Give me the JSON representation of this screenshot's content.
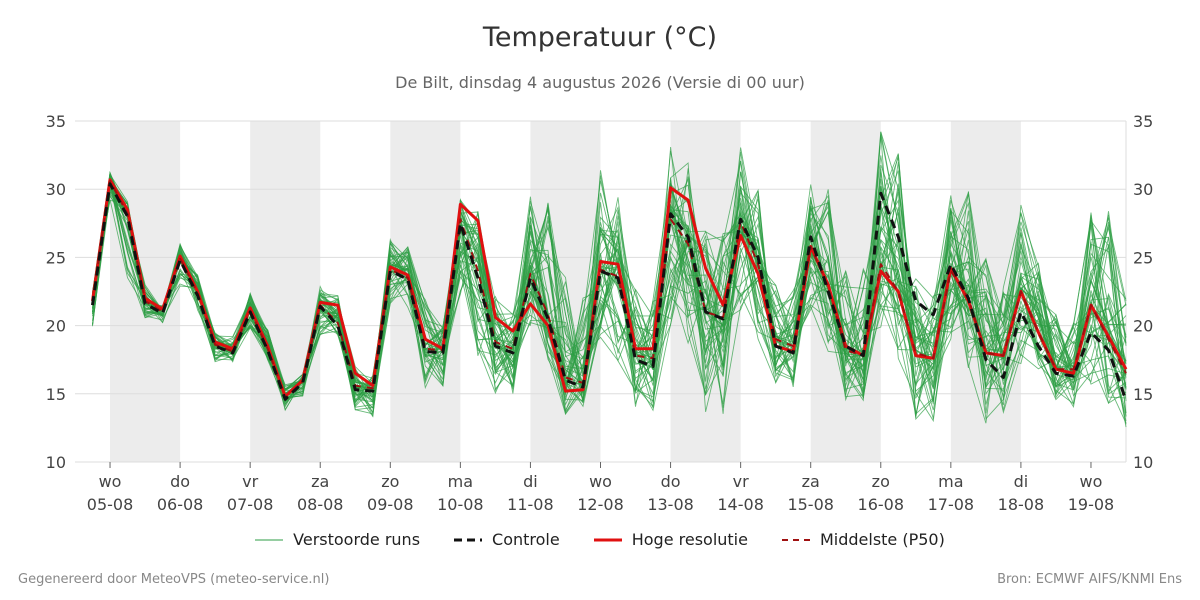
{
  "title": "Temperatuur (°C)",
  "subtitle": "De Bilt, dinsdag  4 augustus 2026 (Versie di 00 uur)",
  "footer_left": "Gegenereerd door MeteoVPS (meteo-service.nl)",
  "footer_right": "Bron: ECMWF AIFS/KNMI Ens",
  "colors": {
    "members": "#2e9e45",
    "control": "#111111",
    "hires": "#e01010",
    "median": "#a01010",
    "weekend_band": "#ececec",
    "grid": "#dddddd"
  },
  "chart_data": {
    "type": "line",
    "ylim": [
      10,
      35
    ],
    "yticks": [
      10,
      15,
      20,
      25,
      30,
      35
    ],
    "grid": true,
    "legend_position": "bottom",
    "x_range_hours": [
      -12,
      348
    ],
    "x_unit": "hours since 05-08 00:00",
    "step_hours": 6,
    "start_hour": -6,
    "xticks": [
      {
        "day": "wo",
        "date": "05-08"
      },
      {
        "day": "do",
        "date": "06-08"
      },
      {
        "day": "vr",
        "date": "07-08"
      },
      {
        "day": "za",
        "date": "08-08"
      },
      {
        "day": "zo",
        "date": "09-08"
      },
      {
        "day": "ma",
        "date": "10-08"
      },
      {
        "day": "di",
        "date": "11-08"
      },
      {
        "day": "wo",
        "date": "12-08"
      },
      {
        "day": "do",
        "date": "13-08"
      },
      {
        "day": "vr",
        "date": "14-08"
      },
      {
        "day": "za",
        "date": "15-08"
      },
      {
        "day": "zo",
        "date": "16-08"
      },
      {
        "day": "ma",
        "date": "17-08"
      },
      {
        "day": "di",
        "date": "18-08"
      },
      {
        "day": "wo",
        "date": "19-08"
      }
    ],
    "shaded_days": [
      "05-08",
      "07-08",
      "09-08",
      "11-08",
      "13-08",
      "15-08",
      "17-08"
    ],
    "legend": [
      "Verstoorde runs",
      "Controle",
      "Hoge resolutie",
      "Middelste (P50)"
    ],
    "series": [
      {
        "name": "Hoge resolutie",
        "style": "solid",
        "values": [
          21.8,
          30.7,
          28.5,
          22.0,
          21.2,
          25.1,
          22.5,
          18.8,
          18.3,
          21.3,
          18.5,
          14.8,
          16.0,
          21.7,
          21.5,
          16.5,
          15.6,
          24.3,
          23.7,
          19.0,
          18.3,
          28.9,
          27.7,
          20.6,
          19.6,
          21.6,
          20.0,
          15.2,
          15.3,
          24.7,
          24.5,
          18.3,
          18.3,
          30.1,
          29.2,
          24.2,
          21.5,
          26.6,
          23.8,
          18.5,
          18.1,
          25.8,
          23.0,
          18.5,
          17.8,
          24.0,
          22.5,
          17.8,
          17.6,
          24.2,
          21.8,
          18.0,
          17.8,
          22.5,
          19.5,
          16.8,
          16.5,
          21.5,
          19.2,
          16.8
        ]
      },
      {
        "name": "Controle",
        "style": "dash",
        "values": [
          21.5,
          30.4,
          28.0,
          21.6,
          20.9,
          24.8,
          22.2,
          18.5,
          18.0,
          21.0,
          18.2,
          14.6,
          15.8,
          21.4,
          20.0,
          15.3,
          15.2,
          24.0,
          23.4,
          18.1,
          18.0,
          27.5,
          23.5,
          18.5,
          18.0,
          23.5,
          20.5,
          16.0,
          15.5,
          24.0,
          23.5,
          17.5,
          17.0,
          28.2,
          26.5,
          21.0,
          20.5,
          27.8,
          25.0,
          18.5,
          18.0,
          26.5,
          22.5,
          18.5,
          17.8,
          29.7,
          26.5,
          21.8,
          20.8,
          24.5,
          22.0,
          17.5,
          16.2,
          21.0,
          18.5,
          16.5,
          16.3,
          19.5,
          18.2,
          14.5
        ]
      },
      {
        "name": "Middelste (P50)",
        "style": "dash",
        "values": [
          21.7,
          30.6,
          28.2,
          21.8,
          21.0,
          24.9,
          22.4,
          18.6,
          18.1,
          21.1,
          18.3,
          14.7,
          15.9,
          21.5,
          20.2,
          15.6,
          15.4,
          24.1,
          23.5,
          18.3,
          18.2,
          27.8,
          24.0,
          18.8,
          18.3,
          23.8,
          20.8,
          16.2,
          15.8,
          24.1,
          23.6,
          17.8,
          17.6,
          27.8,
          26.0,
          21.0,
          20.6,
          27.6,
          24.5,
          19.0,
          18.5,
          25.8,
          22.8,
          18.2,
          17.8,
          24.5,
          22.5,
          18.0,
          17.6,
          24.0,
          22.0,
          18.0,
          17.8,
          22.5,
          19.5,
          16.8,
          16.8,
          21.5,
          19.0,
          16.5
        ]
      }
    ],
    "members": {
      "count": 50,
      "base": [
        21.6,
        30.5,
        28.0,
        21.7,
        21.0,
        24.9,
        22.5,
        18.6,
        18.2,
        21.2,
        18.4,
        14.8,
        15.9,
        21.4,
        20.8,
        15.5,
        15.3,
        24.2,
        23.6,
        18.3,
        18.1,
        27.5,
        25.0,
        19.0,
        18.4,
        23.8,
        20.8,
        16.0,
        15.8,
        24.3,
        24.0,
        18.0,
        17.6,
        28.5,
        26.5,
        21.2,
        20.7,
        27.5,
        24.5,
        19.0,
        18.5,
        25.8,
        22.8,
        18.0,
        17.6,
        24.8,
        23.5,
        18.2,
        17.6,
        24.2,
        22.5,
        18.2,
        17.6,
        22.8,
        20.5,
        17.0,
        16.6,
        21.5,
        19.8,
        16.5
      ],
      "min": [
        19.8,
        29.0,
        23.5,
        20.5,
        20.2,
        22.8,
        21.0,
        17.3,
        17.3,
        19.8,
        17.3,
        13.8,
        14.8,
        19.3,
        19.0,
        13.8,
        13.3,
        21.5,
        21.0,
        15.3,
        15.5,
        22.0,
        17.5,
        15.0,
        15.0,
        20.0,
        17.5,
        13.5,
        14.0,
        18.5,
        17.0,
        14.0,
        13.5,
        19.5,
        18.0,
        13.5,
        13.5,
        21.0,
        19.0,
        15.5,
        15.5,
        21.0,
        18.0,
        14.5,
        14.5,
        19.5,
        17.5,
        13.0,
        12.8,
        18.5,
        16.5,
        12.5,
        13.5,
        17.0,
        16.5,
        14.5,
        13.5,
        15.5,
        14.0,
        12.5
      ],
      "max": [
        22.5,
        31.3,
        29.2,
        23.0,
        21.5,
        26.0,
        23.8,
        19.5,
        19.2,
        22.8,
        19.8,
        15.8,
        16.5,
        22.9,
        22.2,
        17.0,
        16.5,
        26.3,
        26.5,
        22.0,
        20.0,
        29.5,
        28.5,
        22.5,
        21.0,
        29.8,
        29.5,
        23.8,
        23.0,
        31.5,
        29.5,
        23.0,
        22.5,
        34.0,
        32.0,
        27.5,
        27.0,
        33.8,
        30.0,
        23.0,
        23.0,
        31.0,
        30.0,
        25.0,
        24.5,
        34.5,
        33.0,
        23.5,
        22.5,
        30.6,
        30.2,
        25.0,
        23.0,
        28.9,
        25.5,
        21.0,
        20.5,
        29.0,
        28.5,
        22.0
      ]
    }
  }
}
